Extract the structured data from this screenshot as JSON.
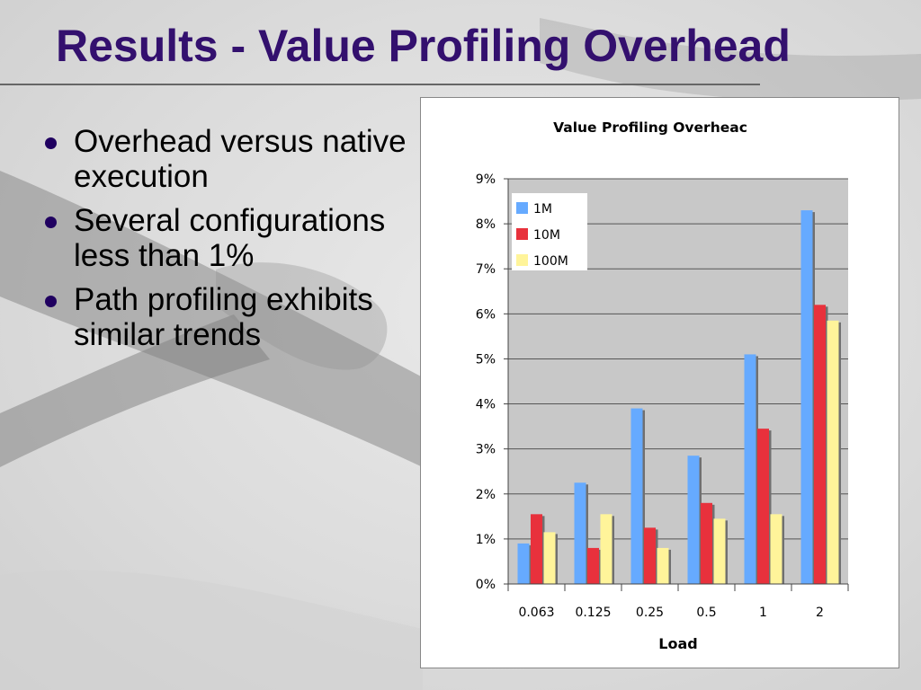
{
  "slide": {
    "title": "Results - Value Profiling Overhead",
    "bullets": [
      "Overhead versus native execution",
      "Several configurations less than 1%",
      "Path profiling exhibits similar trends"
    ]
  },
  "colors": {
    "title": "#33106e",
    "series": [
      "#66aaff",
      "#e8313c",
      "#fff49a"
    ]
  },
  "chart_data": {
    "type": "bar",
    "title": "Value Profiling Overheac",
    "xlabel": "Load",
    "ylabel": "",
    "categories": [
      "0.063",
      "0.125",
      "0.25",
      "0.5",
      "1",
      "2"
    ],
    "series": [
      {
        "name": "1M",
        "values": [
          0.9,
          2.25,
          3.9,
          2.85,
          5.1,
          8.3
        ]
      },
      {
        "name": "10M",
        "values": [
          1.55,
          0.8,
          1.25,
          1.8,
          3.45,
          6.2
        ]
      },
      {
        "name": "100M",
        "values": [
          1.15,
          1.55,
          0.8,
          1.45,
          1.55,
          5.85
        ]
      }
    ],
    "ylim": [
      0,
      9
    ],
    "yticks": [
      "0%",
      "1%",
      "2%",
      "3%",
      "4%",
      "5%",
      "6%",
      "7%",
      "8%",
      "9%"
    ],
    "grid": true,
    "legend_position": "top-left"
  }
}
